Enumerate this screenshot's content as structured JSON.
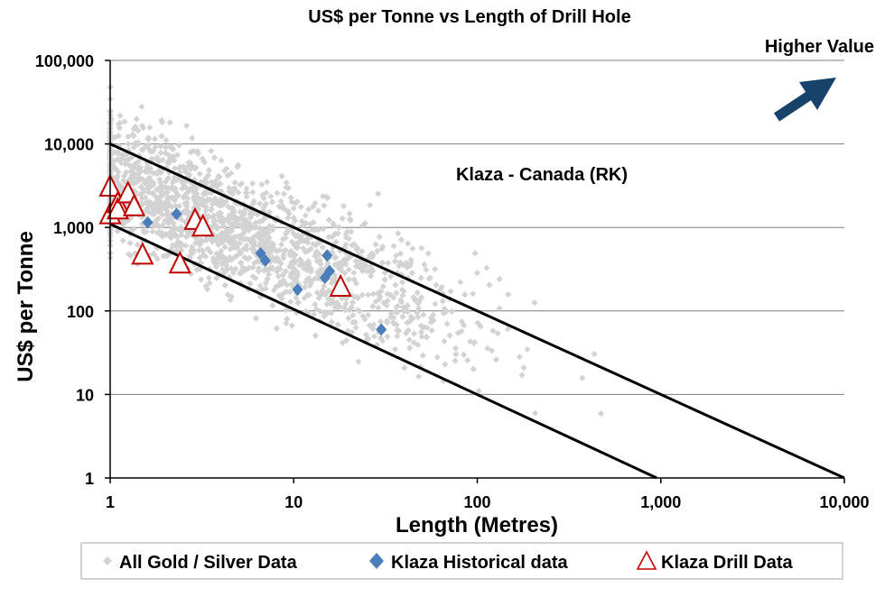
{
  "chart_data": {
    "type": "scatter",
    "title": "US$ per Tonne vs Length of Drill Hole",
    "xlabel": "Length (Metres)",
    "ylabel": "US$ per Tonne",
    "x_scale": "log",
    "y_scale": "log",
    "xlim": [
      1,
      10000
    ],
    "ylim": [
      1,
      100000
    ],
    "x_ticks": [
      {
        "value": 1,
        "label": "1"
      },
      {
        "value": 10,
        "label": "10"
      },
      {
        "value": 100,
        "label": "100"
      },
      {
        "value": 1000,
        "label": "1,000"
      },
      {
        "value": 10000,
        "label": "10,000"
      }
    ],
    "y_ticks": [
      {
        "value": 1,
        "label": "1"
      },
      {
        "value": 10,
        "label": "10"
      },
      {
        "value": 100,
        "label": "100"
      },
      {
        "value": 1000,
        "label": "1,000"
      },
      {
        "value": 10000,
        "label": "10,000"
      },
      {
        "value": 100000,
        "label": "100,000"
      }
    ],
    "grid": "horizontal",
    "annotations": {
      "higher_value": "Higher Value",
      "deposit_label": "Klaza - Canada  (RK)"
    },
    "reference_lines": [
      {
        "name": "upper-line",
        "from": [
          1,
          10000
        ],
        "to": [
          10000,
          1
        ]
      },
      {
        "name": "lower-line",
        "from": [
          1,
          1100
        ],
        "to": [
          950,
          1
        ]
      }
    ],
    "background_cloud": {
      "name": "All Gold / Silver Data",
      "color": "#d3d3d3",
      "point_count": 3200,
      "note": "scatter cloud of thousands of points spanning roughly 1-600 m and 1-80,000 US$/t"
    },
    "series": [
      {
        "name": "Klaza Historical data",
        "marker": "diamond",
        "color": "#4a7ebb",
        "points": [
          [
            1.6,
            1150
          ],
          [
            2.3,
            1450
          ],
          [
            6.6,
            490
          ],
          [
            7.0,
            400
          ],
          [
            10.5,
            180
          ],
          [
            14.8,
            250
          ],
          [
            15.2,
            460
          ],
          [
            15.7,
            300
          ],
          [
            30,
            60
          ]
        ]
      },
      {
        "name": "Klaza Drill Data",
        "marker": "triangle-open",
        "color": "#c00000",
        "points": [
          [
            1.0,
            3000
          ],
          [
            1.0,
            1400
          ],
          [
            1.1,
            1900
          ],
          [
            1.1,
            1600
          ],
          [
            1.25,
            2500
          ],
          [
            1.35,
            1750
          ],
          [
            1.5,
            460
          ],
          [
            2.4,
            360
          ],
          [
            2.9,
            1200
          ],
          [
            3.2,
            1000
          ],
          [
            18,
            190
          ]
        ]
      }
    ],
    "legend": {
      "placement": "bottom",
      "entries": [
        "All Gold / Silver Data",
        "Klaza Historical data",
        "Klaza Drill Data"
      ]
    },
    "arrow": {
      "color": "#17436b",
      "direction": "up-right"
    }
  }
}
